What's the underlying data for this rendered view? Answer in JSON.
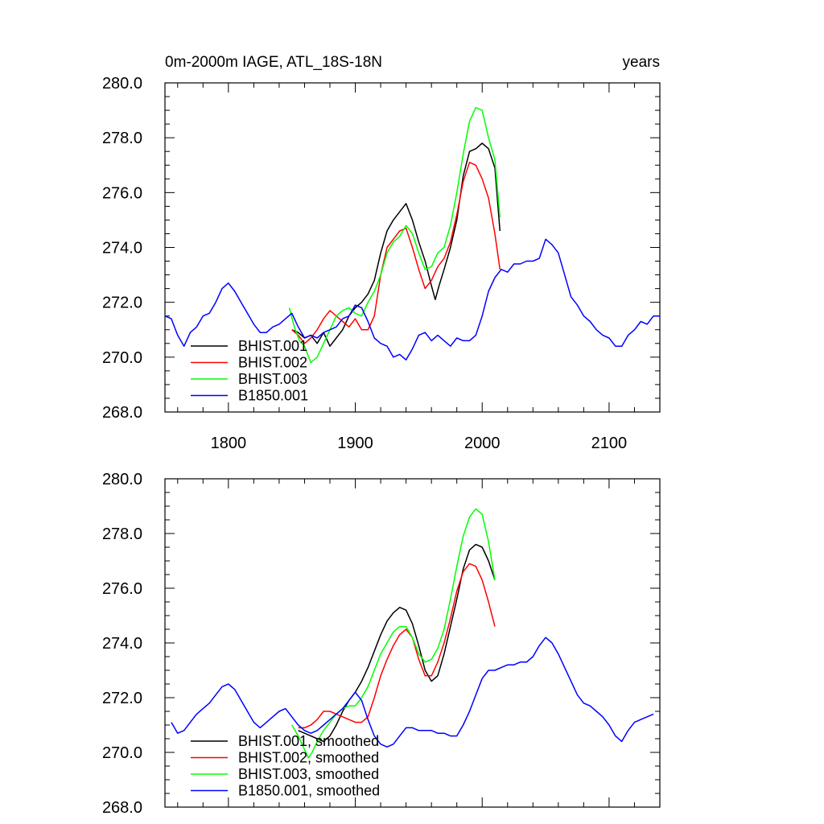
{
  "figure": {
    "title_left": "0m-2000m IAGE, ATL_18S-18N",
    "title_right": "years"
  },
  "chart_data": [
    {
      "type": "line",
      "panel": "top",
      "xlim": [
        1750,
        2140
      ],
      "ylim": [
        268,
        280
      ],
      "x_ticks": [
        1800,
        1900,
        2000,
        2100
      ],
      "x_tick_labels": [
        "1800",
        "1900",
        "2000",
        "2100"
      ],
      "y_ticks": [
        268,
        270,
        272,
        274,
        276,
        278,
        280
      ],
      "y_tick_labels": [
        "268.0",
        "270.0",
        "272.0",
        "274.0",
        "276.0",
        "278.0",
        "280.0"
      ],
      "legend_position": "bottom-left",
      "series": [
        {
          "name": "BHIST.001",
          "color": "#000000",
          "x": [
            1850,
            1855,
            1860,
            1865,
            1870,
            1875,
            1880,
            1885,
            1890,
            1895,
            1900,
            1905,
            1910,
            1915,
            1920,
            1925,
            1930,
            1935,
            1940,
            1945,
            1950,
            1955,
            1960,
            1963,
            1966,
            1970,
            1975,
            1980,
            1985,
            1990,
            1995,
            2000,
            2005,
            2010,
            2014
          ],
          "y": [
            271.0,
            270.9,
            270.7,
            270.8,
            270.5,
            270.9,
            270.4,
            270.7,
            271.0,
            271.5,
            271.8,
            272.0,
            272.3,
            272.8,
            273.8,
            274.6,
            275.0,
            275.3,
            275.6,
            275.0,
            274.2,
            273.5,
            272.6,
            272.1,
            272.6,
            273.2,
            274.0,
            275.0,
            276.6,
            277.5,
            277.6,
            277.8,
            277.6,
            276.9,
            274.6
          ]
        },
        {
          "name": "BHIST.002",
          "color": "#ff0000",
          "x": [
            1850,
            1855,
            1860,
            1865,
            1870,
            1875,
            1880,
            1885,
            1890,
            1895,
            1900,
            1905,
            1910,
            1915,
            1920,
            1925,
            1930,
            1935,
            1940,
            1945,
            1950,
            1955,
            1960,
            1965,
            1970,
            1975,
            1980,
            1985,
            1990,
            1995,
            2000,
            2005,
            2010,
            2014
          ],
          "y": [
            271.0,
            270.8,
            270.5,
            270.7,
            271.0,
            271.4,
            271.7,
            271.5,
            271.3,
            271.1,
            271.4,
            271.0,
            271.0,
            271.5,
            273.0,
            274.0,
            274.3,
            274.6,
            274.7,
            274.0,
            273.2,
            272.5,
            272.8,
            273.3,
            273.6,
            274.2,
            275.2,
            276.4,
            277.1,
            277.0,
            276.5,
            275.8,
            274.5,
            273.2
          ]
        },
        {
          "name": "BHIST.003",
          "color": "#00ff00",
          "x": [
            1848,
            1852,
            1856,
            1860,
            1865,
            1870,
            1875,
            1880,
            1885,
            1890,
            1895,
            1900,
            1905,
            1910,
            1915,
            1920,
            1925,
            1930,
            1935,
            1940,
            1945,
            1950,
            1955,
            1960,
            1965,
            1970,
            1975,
            1980,
            1985,
            1990,
            1995,
            2000,
            2005,
            2010,
            2014
          ],
          "y": [
            271.8,
            271.1,
            270.6,
            270.4,
            269.8,
            270.0,
            270.5,
            271.0,
            271.5,
            271.7,
            271.8,
            271.6,
            271.5,
            272.0,
            272.4,
            273.0,
            273.8,
            274.2,
            274.4,
            274.8,
            274.5,
            273.8,
            273.2,
            273.3,
            273.8,
            274.0,
            274.8,
            276.0,
            277.4,
            278.6,
            279.1,
            279.0,
            278.0,
            277.2,
            275.1
          ]
        },
        {
          "name": "B1850.001",
          "color": "#0000ff",
          "x": [
            1750,
            1755,
            1760,
            1765,
            1770,
            1775,
            1780,
            1785,
            1790,
            1795,
            1800,
            1805,
            1810,
            1815,
            1820,
            1825,
            1830,
            1835,
            1840,
            1845,
            1850,
            1855,
            1860,
            1865,
            1870,
            1875,
            1880,
            1885,
            1890,
            1895,
            1900,
            1905,
            1910,
            1915,
            1920,
            1925,
            1930,
            1935,
            1940,
            1945,
            1950,
            1955,
            1960,
            1965,
            1970,
            1975,
            1980,
            1985,
            1990,
            1995,
            2000,
            2005,
            2010,
            2015,
            2020,
            2025,
            2030,
            2035,
            2040,
            2045,
            2050,
            2055,
            2060,
            2065,
            2070,
            2075,
            2080,
            2085,
            2090,
            2095,
            2100,
            2105,
            2110,
            2115,
            2120,
            2125,
            2130,
            2135,
            2140
          ],
          "y": [
            271.5,
            271.4,
            270.8,
            270.4,
            270.9,
            271.1,
            271.5,
            271.6,
            272.0,
            272.5,
            272.7,
            272.4,
            272.0,
            271.6,
            271.2,
            270.9,
            270.9,
            271.1,
            271.2,
            271.4,
            271.6,
            271.1,
            270.7,
            270.8,
            270.7,
            270.9,
            271.0,
            271.1,
            271.4,
            271.5,
            271.9,
            271.8,
            271.3,
            270.7,
            270.5,
            270.4,
            270.0,
            270.1,
            269.9,
            270.3,
            270.8,
            270.9,
            270.6,
            270.8,
            270.6,
            270.4,
            270.7,
            270.6,
            270.6,
            270.8,
            271.5,
            272.4,
            272.9,
            273.2,
            273.1,
            273.4,
            273.4,
            273.5,
            273.5,
            273.6,
            274.3,
            274.1,
            273.8,
            273.0,
            272.2,
            271.9,
            271.5,
            271.3,
            271.0,
            270.8,
            270.7,
            270.4,
            270.4,
            270.8,
            271.0,
            271.3,
            271.2,
            271.5,
            271.5
          ]
        }
      ]
    },
    {
      "type": "line",
      "panel": "bottom",
      "xlim": [
        1750,
        2140
      ],
      "ylim": [
        268,
        280
      ],
      "x_ticks": [
        1800,
        1900,
        2000,
        2100
      ],
      "y_ticks": [
        268,
        270,
        272,
        274,
        276,
        278,
        280
      ],
      "y_tick_labels": [
        "268.0",
        "270.0",
        "272.0",
        "274.0",
        "276.0",
        "278.0",
        "280.0"
      ],
      "legend_position": "bottom-left",
      "series": [
        {
          "name": "BHIST.001, smoothed",
          "color": "#000000",
          "x": [
            1855,
            1860,
            1865,
            1870,
            1875,
            1880,
            1885,
            1890,
            1895,
            1900,
            1905,
            1910,
            1915,
            1920,
            1925,
            1930,
            1935,
            1940,
            1945,
            1950,
            1955,
            1960,
            1965,
            1970,
            1975,
            1980,
            1985,
            1990,
            1995,
            2000,
            2005,
            2010
          ],
          "y": [
            270.8,
            270.7,
            270.6,
            270.5,
            270.4,
            270.6,
            271.0,
            271.5,
            271.9,
            272.2,
            272.6,
            273.1,
            273.7,
            274.3,
            274.8,
            275.1,
            275.3,
            275.2,
            274.7,
            273.9,
            273.0,
            272.6,
            272.8,
            273.6,
            274.6,
            275.6,
            276.7,
            277.4,
            277.6,
            277.5,
            277.0,
            276.3
          ]
        },
        {
          "name": "BHIST.002, smoothed",
          "color": "#ff0000",
          "x": [
            1855,
            1860,
            1865,
            1870,
            1875,
            1880,
            1885,
            1890,
            1895,
            1900,
            1905,
            1910,
            1915,
            1920,
            1925,
            1930,
            1935,
            1940,
            1945,
            1950,
            1955,
            1960,
            1965,
            1970,
            1975,
            1980,
            1985,
            1990,
            1995,
            2000,
            2005,
            2010
          ],
          "y": [
            270.9,
            270.9,
            271.0,
            271.2,
            271.5,
            271.5,
            271.4,
            271.3,
            271.2,
            271.1,
            271.1,
            271.3,
            272.0,
            272.8,
            273.4,
            273.9,
            274.3,
            274.5,
            274.2,
            273.4,
            272.8,
            272.8,
            273.3,
            274.0,
            274.9,
            275.9,
            276.6,
            276.9,
            276.8,
            276.3,
            275.5,
            274.6
          ]
        },
        {
          "name": "BHIST.003, smoothed",
          "color": "#00ff00",
          "x": [
            1850,
            1855,
            1860,
            1863,
            1866,
            1870,
            1875,
            1880,
            1885,
            1890,
            1895,
            1900,
            1905,
            1910,
            1915,
            1920,
            1925,
            1930,
            1935,
            1940,
            1945,
            1950,
            1955,
            1960,
            1965,
            1970,
            1975,
            1980,
            1985,
            1990,
            1995,
            2000,
            2005,
            2010
          ],
          "y": [
            271.0,
            270.6,
            270.1,
            269.8,
            270.0,
            270.4,
            270.8,
            271.1,
            271.4,
            271.6,
            271.7,
            271.7,
            272.0,
            272.4,
            273.0,
            273.6,
            274.0,
            274.4,
            274.6,
            274.6,
            274.2,
            273.6,
            273.3,
            273.4,
            273.8,
            274.5,
            275.6,
            276.8,
            277.9,
            278.6,
            278.9,
            278.7,
            277.7,
            276.3
          ]
        },
        {
          "name": "B1850.001, smoothed",
          "color": "#0000ff",
          "x": [
            1755,
            1760,
            1765,
            1770,
            1775,
            1780,
            1785,
            1790,
            1795,
            1800,
            1805,
            1810,
            1815,
            1820,
            1825,
            1830,
            1835,
            1840,
            1845,
            1850,
            1855,
            1860,
            1865,
            1870,
            1875,
            1880,
            1885,
            1890,
            1895,
            1900,
            1905,
            1910,
            1915,
            1920,
            1925,
            1930,
            1935,
            1940,
            1945,
            1950,
            1955,
            1960,
            1965,
            1970,
            1975,
            1980,
            1985,
            1990,
            1995,
            2000,
            2005,
            2010,
            2015,
            2020,
            2025,
            2030,
            2035,
            2040,
            2045,
            2050,
            2055,
            2060,
            2065,
            2070,
            2075,
            2080,
            2085,
            2090,
            2095,
            2100,
            2105,
            2110,
            2115,
            2120,
            2125,
            2130,
            2135
          ],
          "y": [
            271.1,
            270.7,
            270.8,
            271.1,
            271.4,
            271.6,
            271.8,
            272.1,
            272.4,
            272.5,
            272.3,
            271.9,
            271.5,
            271.1,
            270.9,
            271.1,
            271.3,
            271.5,
            271.6,
            271.3,
            271.0,
            270.8,
            270.7,
            270.8,
            271.0,
            271.2,
            271.4,
            271.6,
            271.9,
            272.2,
            271.9,
            271.2,
            270.6,
            270.3,
            270.2,
            270.3,
            270.6,
            270.9,
            270.9,
            270.8,
            270.8,
            270.8,
            270.7,
            270.7,
            270.6,
            270.6,
            271.0,
            271.5,
            272.1,
            272.7,
            273.0,
            273.0,
            273.1,
            273.2,
            273.2,
            273.3,
            273.3,
            273.5,
            273.9,
            274.2,
            274.0,
            273.6,
            273.1,
            272.6,
            272.1,
            271.8,
            271.7,
            271.5,
            271.3,
            271.0,
            270.6,
            270.4,
            270.8,
            271.1,
            271.2,
            271.3,
            271.4
          ]
        }
      ]
    }
  ]
}
